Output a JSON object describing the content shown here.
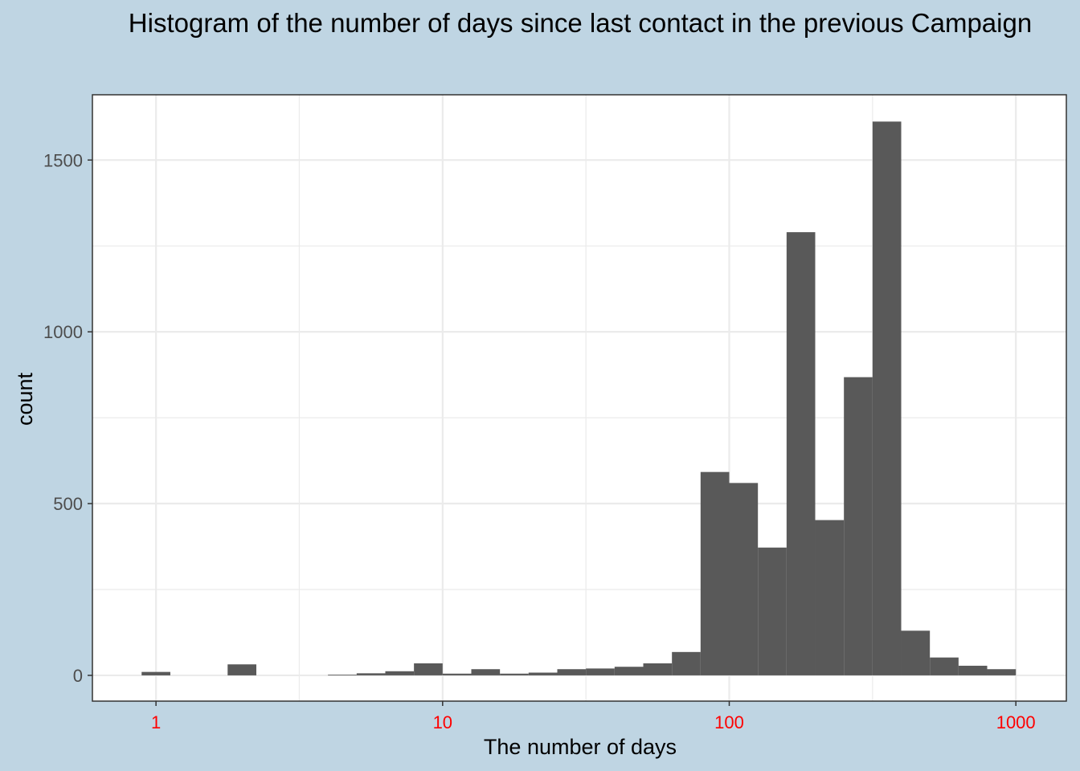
{
  "chart_data": {
    "type": "bar",
    "title": "Histogram of the number of days since last contact in the previous Campaign",
    "xlabel": "The number of days",
    "ylabel": "count",
    "x_scale": "log10",
    "xlim": [
      0.6,
      1500
    ],
    "ylim": [
      -75,
      1690
    ],
    "x_ticks": [
      1,
      10,
      100,
      1000
    ],
    "x_tick_labels": [
      "1",
      "10",
      "100",
      "1000"
    ],
    "y_ticks": [
      0,
      500,
      1000,
      1500
    ],
    "y_tick_labels": [
      "0",
      "500",
      "1000",
      "1500"
    ],
    "grid": true,
    "colors": {
      "background": "#bfd5e3",
      "panel": "#ffffff",
      "bar": "#595959",
      "x_tick_label": "#ff0000",
      "y_tick_label": "#4d4d4d",
      "grid": "#ebebeb"
    },
    "bins": [
      {
        "x_min": 0.891,
        "x_max": 1.122,
        "count": 10
      },
      {
        "x_min": 1.778,
        "x_max": 2.239,
        "count": 32
      },
      {
        "x_min": 3.981,
        "x_max": 5.012,
        "count": 2
      },
      {
        "x_min": 5.012,
        "x_max": 6.31,
        "count": 6
      },
      {
        "x_min": 6.31,
        "x_max": 7.943,
        "count": 12
      },
      {
        "x_min": 7.943,
        "x_max": 10.0,
        "count": 35
      },
      {
        "x_min": 10.0,
        "x_max": 12.59,
        "count": 5
      },
      {
        "x_min": 12.59,
        "x_max": 15.85,
        "count": 18
      },
      {
        "x_min": 15.85,
        "x_max": 19.95,
        "count": 5
      },
      {
        "x_min": 19.95,
        "x_max": 25.12,
        "count": 8
      },
      {
        "x_min": 25.12,
        "x_max": 31.62,
        "count": 18
      },
      {
        "x_min": 31.62,
        "x_max": 39.81,
        "count": 20
      },
      {
        "x_min": 39.81,
        "x_max": 50.12,
        "count": 25
      },
      {
        "x_min": 50.12,
        "x_max": 63.1,
        "count": 35
      },
      {
        "x_min": 63.1,
        "x_max": 79.43,
        "count": 68
      },
      {
        "x_min": 79.43,
        "x_max": 100.0,
        "count": 592
      },
      {
        "x_min": 100.0,
        "x_max": 125.9,
        "count": 560
      },
      {
        "x_min": 125.9,
        "x_max": 158.5,
        "count": 372
      },
      {
        "x_min": 158.5,
        "x_max": 199.5,
        "count": 1290
      },
      {
        "x_min": 199.5,
        "x_max": 251.2,
        "count": 452
      },
      {
        "x_min": 251.2,
        "x_max": 316.2,
        "count": 868
      },
      {
        "x_min": 316.2,
        "x_max": 398.1,
        "count": 1612
      },
      {
        "x_min": 398.1,
        "x_max": 501.2,
        "count": 130
      },
      {
        "x_min": 501.2,
        "x_max": 631.0,
        "count": 52
      },
      {
        "x_min": 631.0,
        "x_max": 794.3,
        "count": 28
      },
      {
        "x_min": 794.3,
        "x_max": 1000.0,
        "count": 18
      }
    ]
  }
}
